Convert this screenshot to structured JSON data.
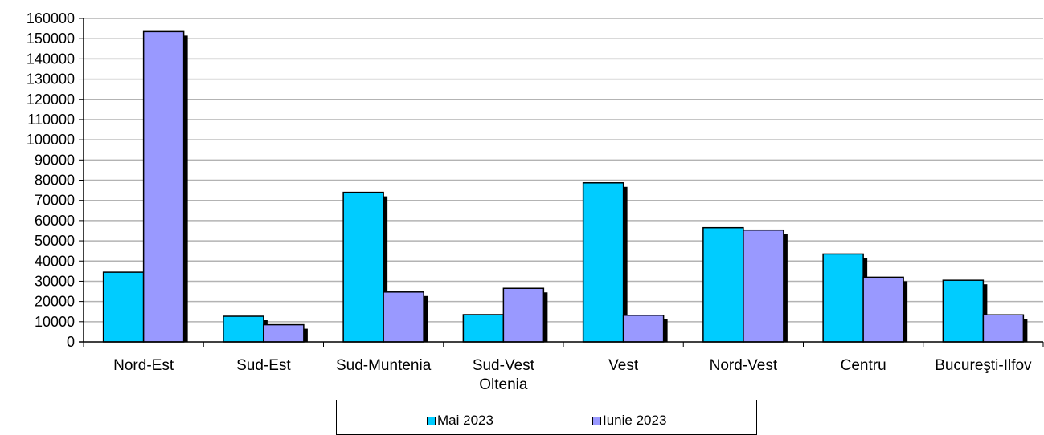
{
  "chart_data": {
    "type": "bar",
    "categories": [
      "Nord-Est",
      "Sud-Est",
      "Sud-Muntenia",
      "Sud-Vest\nOltenia",
      "Vest",
      "Nord-Vest",
      "Centru",
      "Bucureşti-Ilfov"
    ],
    "series": [
      {
        "name": "Mai 2023",
        "values": [
          34500,
          12700,
          74000,
          13500,
          78700,
          56500,
          43500,
          30500
        ],
        "color": "#00ccff"
      },
      {
        "name": "Iunie 2023",
        "values": [
          153500,
          8500,
          24700,
          26500,
          13200,
          55300,
          32000,
          13400
        ],
        "color": "#9999ff"
      }
    ],
    "ylim": [
      0,
      160000
    ],
    "yticks": [
      "0",
      "10000",
      "20000",
      "30000",
      "40000",
      "50000",
      "60000",
      "70000",
      "80000",
      "90000",
      "100000",
      "110000",
      "120000",
      "130000",
      "140000",
      "150000",
      "160000"
    ],
    "grid": true,
    "legend_position": "bottom"
  },
  "legend": {
    "items": [
      {
        "label": "Mai 2023",
        "color": "#00ccff"
      },
      {
        "label": "Iunie 2023",
        "color": "#9999ff"
      }
    ]
  }
}
